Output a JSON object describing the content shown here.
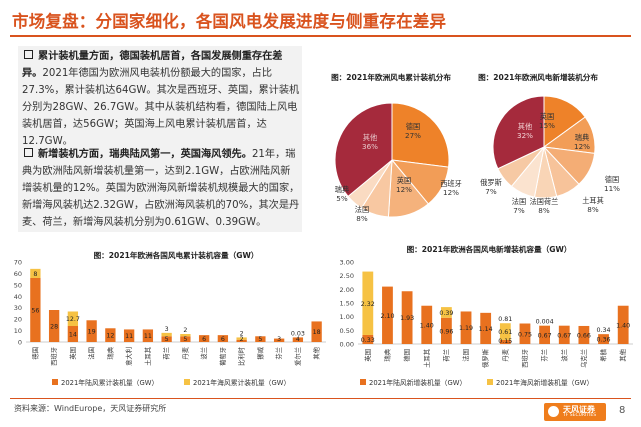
{
  "header": {
    "title": "市场复盘：分国家细化，各国风电发展进度与侧重存在差异"
  },
  "text": {
    "p1_head": "累计装机量方面，德国装机居首，各国发展侧重存在差异。",
    "p1_body": "2021年德国为欧洲风电装机份额最大的国家，占比27.3%，累计装机达64GW。其次是西班牙、英国，累计装机分别为28GW、26.7GW。其中从装机结构看，德国陆上风电装机居首，达56GW；英国海上风电累计装机居首，达12.7GW。",
    "p2_head": "新增装机方面，瑞典陆风第一，英国海风领先。",
    "p2_body": "21年，瑞典为欧洲陆风新增装机量第一，达到2.1GW，占欧洲陆风新增装机量的12%。英国为欧洲海风新增装机规模最大的国家，新增海风装机达2.32GW，占欧洲海风装机的70%，其次是丹麦、荷兰，新增海风装机分别为0.61GW、0.39GW。"
  },
  "footer": {
    "source": "资料来源：WindEurope，天风证券研究所",
    "page": "8",
    "logo": "天风证券",
    "logo_sub": "TF SECURITIES"
  },
  "colors": {
    "onshore": "#e8711f",
    "offshore": "#f6c244",
    "accent": "#d9531e"
  },
  "chart_data": [
    {
      "type": "pie",
      "title": "图：2021年欧洲风电累计装机分布",
      "labels": [
        "德国",
        "西班牙",
        "英国",
        "法国",
        "瑞典",
        "其他"
      ],
      "values": [
        27,
        12,
        12,
        8,
        5,
        36
      ],
      "value_labels": [
        "27%",
        "12%",
        "12%",
        "8%",
        "5%",
        "36%"
      ],
      "colors": [
        "#ee8229",
        "#f29d57",
        "#f5b27c",
        "#f8c8a2",
        "#fadbc2",
        "#a52a3c"
      ]
    },
    {
      "type": "pie",
      "title": "图：2021年欧洲风电新增装机分布",
      "labels": [
        "英国",
        "瑞典",
        "德国",
        "土耳其",
        "法国",
        "法国荷兰",
        "俄罗斯",
        "其他"
      ],
      "values": [
        15,
        12,
        11,
        8,
        7,
        8,
        7,
        32
      ],
      "value_labels": [
        "15%",
        "12%",
        "11%",
        "8%",
        "7%",
        "8%",
        "7%",
        "32%"
      ],
      "colors": [
        "#ee8229",
        "#f29d57",
        "#f4ad75",
        "#f7c39a",
        "#f9d5b6",
        "#fbe3cf",
        "#f6c9a4",
        "#a52a3c"
      ]
    },
    {
      "type": "bar",
      "stacked": true,
      "title": "图：2021年欧洲各国风电累计装机容量（GW）",
      "categories": [
        "德国",
        "西班牙",
        "英国",
        "法国",
        "瑞典",
        "意大利",
        "土耳其",
        "荷兰",
        "丹麦",
        "波兰",
        "葡萄牙",
        "比利时",
        "挪威",
        "芬兰",
        "爱尔兰",
        "其他"
      ],
      "series": [
        {
          "name": "2021年陆风累计装机量（GW）",
          "values": [
            56,
            28,
            14,
            19,
            12,
            11,
            11,
            5,
            5,
            6,
            6,
            2,
            5,
            3,
            4,
            18
          ]
        },
        {
          "name": "2021年海风累计装机量（GW）",
          "values": [
            8,
            0,
            12.7,
            0,
            0,
            0,
            0,
            3,
            2,
            0,
            0,
            2,
            0,
            0,
            0.03,
            0
          ]
        }
      ],
      "bar_labels_bottom": [
        "56",
        "28",
        "14",
        "19",
        "12",
        "11",
        "11",
        "5",
        "5",
        "6",
        "6",
        "2",
        "5",
        "3",
        "4",
        "18"
      ],
      "bar_labels_top": [
        "8",
        "",
        "12.7",
        "",
        "",
        "",
        "",
        "3",
        "2",
        "",
        "",
        "2",
        "",
        "",
        "0.03",
        ""
      ],
      "yticks": [
        "0",
        "10",
        "20",
        "30",
        "40",
        "50",
        "60",
        "70"
      ],
      "ylim": [
        0,
        70
      ]
    },
    {
      "type": "bar",
      "stacked": true,
      "title": "图：2021年欧洲各国风电新增装机容量（GW）",
      "categories": [
        "英国",
        "瑞典",
        "德国",
        "土耳其",
        "荷兰",
        "法国",
        "俄罗斯",
        "丹麦",
        "西班牙",
        "芬兰",
        "波兰",
        "乌克兰",
        "希腊",
        "其他"
      ],
      "series": [
        {
          "name": "2021年陆风新增装机量（GW）",
          "values": [
            0.33,
            2.1,
            1.93,
            1.4,
            0.96,
            1.19,
            1.14,
            0.15,
            0.75,
            0.67,
            0.67,
            0.66,
            0.36,
            1.4
          ]
        },
        {
          "name": "2021年海风新增装机量（GW）",
          "values": [
            2.32,
            0,
            0,
            0,
            0.39,
            0,
            0,
            0.61,
            0,
            0.004,
            0,
            0,
            0,
            0
          ]
        }
      ],
      "bar_labels_bottom": [
        "0.33",
        "2.10",
        "1.93",
        "1.40",
        "0.96",
        "1.19",
        "1.14",
        "0.15",
        "0.75",
        "0.67",
        "0.67",
        "0.66",
        "0.36",
        "1.40"
      ],
      "bar_labels_top": [
        "2.32",
        "",
        "",
        "",
        "0.39",
        "",
        "",
        "0.61",
        "",
        "0.004",
        "",
        "",
        "",
        ""
      ],
      "extra_labels": [
        "",
        "",
        "",
        "",
        "",
        "",
        "",
        "0.81",
        "",
        "",
        "",
        "",
        "0.34",
        ""
      ],
      "yticks": [
        "0.00",
        "0.50",
        "1.00",
        "1.50",
        "2.00",
        "2.50",
        "3.00"
      ],
      "ylim": [
        0,
        3
      ]
    }
  ]
}
